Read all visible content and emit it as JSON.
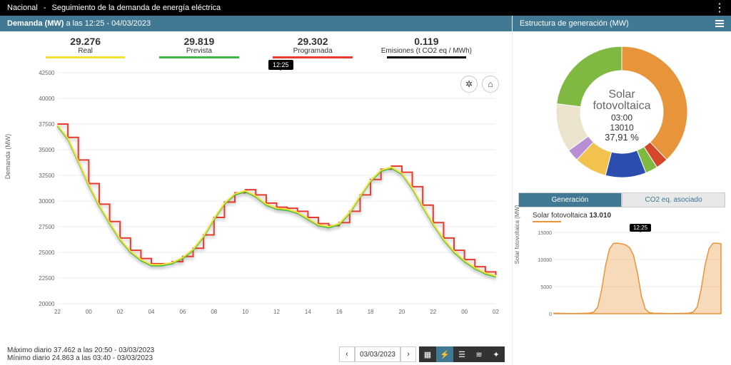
{
  "topbar": {
    "nacional": "Nacional",
    "sep": "-",
    "title": "Seguimiento de la demanda de energía eléctrica"
  },
  "leftHeader": {
    "bold": "Demanda (MW)",
    "rest": " a las 12:25 - 04/03/2023"
  },
  "rightHeader": {
    "title": "Estructura de generación (MW)"
  },
  "legend": [
    {
      "value": "29.276",
      "label": "Real",
      "color": "#f5e134"
    },
    {
      "value": "29.819",
      "label": "Prevista",
      "color": "#3fb84a"
    },
    {
      "value": "29.302",
      "label": "Programada",
      "color": "#e63b2e"
    },
    {
      "value": "0.119",
      "label": "Emisiones (t CO2 eq / MWh)",
      "color": "#000000"
    }
  ],
  "timeBadge": "12:25",
  "mainChart": {
    "ylabel": "Demanda (MW)",
    "ylim": [
      20000,
      42500
    ],
    "yticks": [
      20000,
      22500,
      25000,
      27500,
      30000,
      32500,
      35000,
      37500,
      40000,
      42500
    ],
    "xlabels": [
      "22",
      "00",
      "02",
      "04",
      "06",
      "08",
      "10",
      "12",
      "14",
      "16",
      "18",
      "20",
      "22",
      "00",
      "02"
    ],
    "series": {
      "prevista": {
        "color": "#3fb84a",
        "width": 2,
        "values": [
          37300,
          36000,
          33800,
          31500,
          29500,
          27800,
          26200,
          25000,
          24200,
          23700,
          23700,
          23900,
          24400,
          25200,
          26500,
          28200,
          29700,
          30600,
          30900,
          30400,
          29600,
          29200,
          29100,
          28800,
          28200,
          27600,
          27400,
          27700,
          28800,
          30400,
          31900,
          32900,
          33200,
          32600,
          31200,
          29400,
          27700,
          26200,
          25000,
          24100,
          23400,
          22900,
          22600
        ]
      },
      "programada": {
        "color": "#e63b2e",
        "width": 2,
        "values": [
          37500,
          36200,
          34000,
          31700,
          29700,
          28000,
          26400,
          25200,
          24400,
          23900,
          23900,
          24100,
          24600,
          25400,
          26700,
          28400,
          29900,
          30800,
          31100,
          30600,
          29800,
          29400,
          29300,
          29000,
          28400,
          27800,
          27600,
          27900,
          29000,
          30600,
          32100,
          33100,
          33400,
          32800,
          31400,
          29600,
          27900,
          26400,
          25200,
          24300,
          23600,
          23100,
          22800
        ]
      },
      "real": {
        "color": "#f5e134",
        "width": 2,
        "values": [
          37400,
          36100,
          33900,
          31600,
          29600,
          27900,
          26300,
          25100,
          24300,
          23800,
          23800,
          24000,
          24500,
          25300,
          26600,
          28300,
          29800,
          30700,
          31000,
          30500,
          29700,
          29300,
          29200,
          28900,
          28300,
          27700,
          27500,
          27800,
          28900,
          30500,
          32000,
          33000,
          33300,
          32700,
          31300,
          29500,
          27800,
          26300,
          25100,
          24200,
          23500,
          23000,
          22700
        ]
      }
    }
  },
  "bottomInfo": {
    "max": "Máximo diario 37.462 a las 20:50 - 03/03/2023",
    "min": "Mínimo diario 24.863 a las 03:40 - 03/03/2023",
    "date": "03/03/2023"
  },
  "donut": {
    "centerName1": "Solar",
    "centerName2": "fotovoltaica",
    "time": "03:00",
    "value": "13010",
    "pct": "37,91 %",
    "slices": [
      {
        "color": "#e8943a",
        "value": 38
      },
      {
        "color": "#d4472a",
        "value": 3
      },
      {
        "color": "#7fb941",
        "value": 3
      },
      {
        "color": "#2b4db0",
        "value": 10
      },
      {
        "color": "#f2c14e",
        "value": 8
      },
      {
        "color": "#b98fd4",
        "value": 3
      },
      {
        "color": "#ece3cd",
        "value": 12
      },
      {
        "color": "#7fb941",
        "value": 23
      }
    ]
  },
  "tabs": {
    "gen": "Generación",
    "co2": "CO2 eq. asociado"
  },
  "miniLegendLabel": "Solar fotovoltaica",
  "miniLegendValue": "13.010",
  "miniChart": {
    "ylabel": "Solar fotovoltaica (MW)",
    "color": "#e8943a",
    "ylim": [
      0,
      15000
    ],
    "yticks": [
      0,
      5000,
      10000,
      15000
    ],
    "values": [
      100,
      80,
      60,
      50,
      40,
      40,
      50,
      60,
      80,
      120,
      300,
      1200,
      4500,
      9000,
      12000,
      13000,
      13010,
      12900,
      12700,
      12200,
      10800,
      7500,
      3200,
      800,
      200,
      100,
      80,
      60,
      50,
      40,
      40,
      50,
      60,
      80,
      120,
      300,
      1200,
      4500,
      9000,
      12000,
      13000,
      13010,
      12900
    ]
  }
}
